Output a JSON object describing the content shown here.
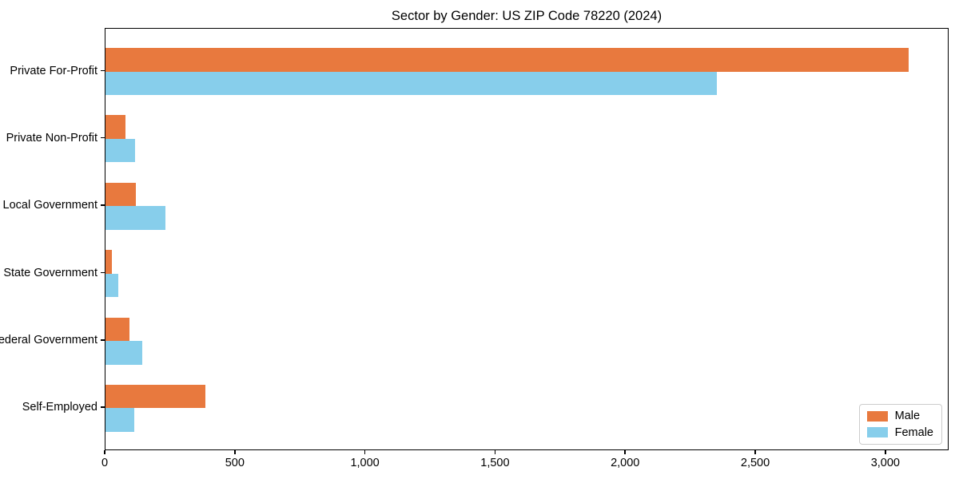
{
  "title": "Sector by Gender: US ZIP Code 78220 (2024)",
  "colors": {
    "male": "#e8793e",
    "female": "#87ceeb",
    "spine": "#000000",
    "legend_border": "#cccccc",
    "text": "#000000",
    "background": "#ffffff"
  },
  "chart_data": {
    "type": "bar",
    "orientation": "horizontal",
    "title": "Sector by Gender: US ZIP Code 78220 (2024)",
    "categories": [
      "Private For-Profit",
      "Private Non-Profit",
      "Local Government",
      "State Government",
      "Federal Government",
      "Self-Employed"
    ],
    "series": [
      {
        "name": "Male",
        "color": "#e8793e",
        "values": [
          3085,
          78,
          117,
          24,
          92,
          384
        ]
      },
      {
        "name": "Female",
        "color": "#87ceeb",
        "values": [
          2350,
          113,
          230,
          49,
          141,
          110
        ]
      }
    ],
    "xlabel": "",
    "ylabel": "",
    "xlim": [
      0,
      3243
    ],
    "xticks": [
      0,
      500,
      1000,
      1500,
      2000,
      2500,
      3000
    ],
    "xtick_labels": [
      "0",
      "500",
      "1,000",
      "1,500",
      "2,000",
      "2,500",
      "3,000"
    ],
    "legend": {
      "position": "lower right",
      "entries": [
        "Male",
        "Female"
      ]
    },
    "grid": false
  }
}
